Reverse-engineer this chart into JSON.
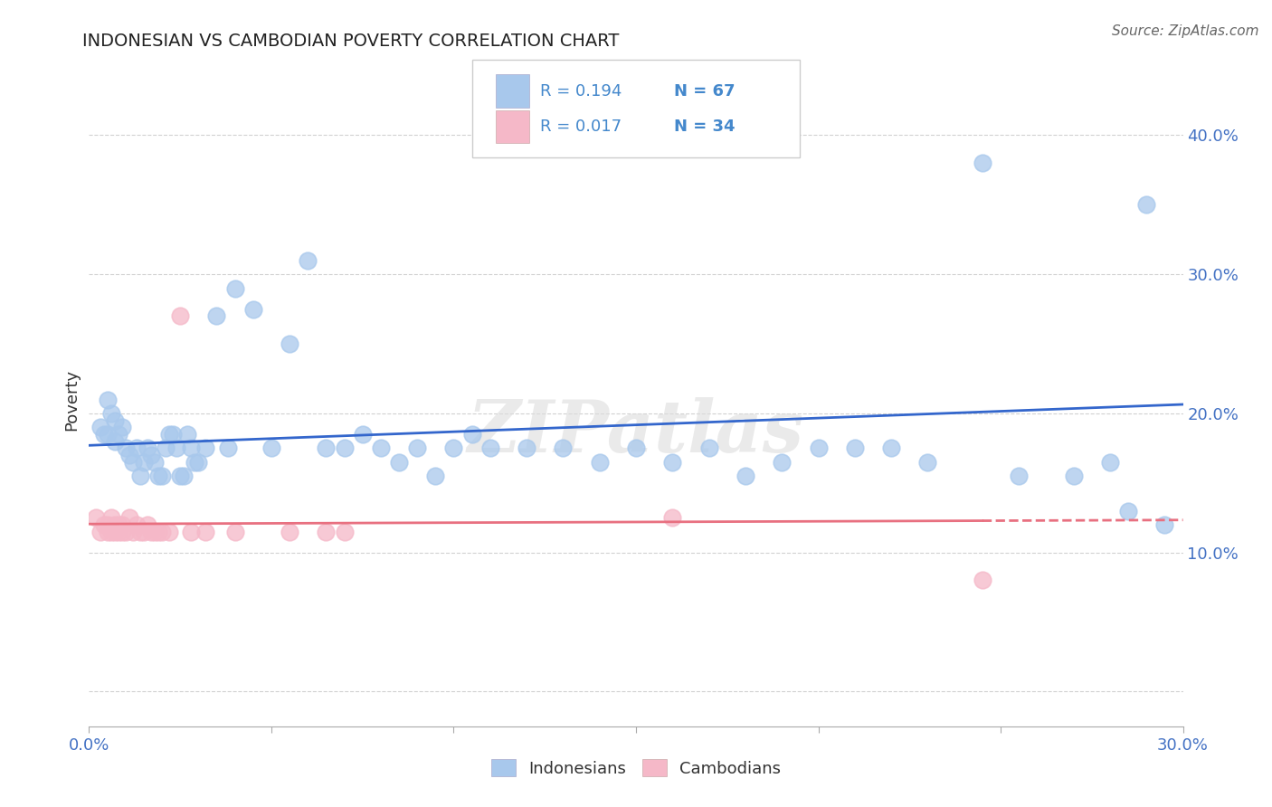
{
  "title": "INDONESIAN VS CAMBODIAN POVERTY CORRELATION CHART",
  "source": "Source: ZipAtlas.com",
  "ylabel": "Poverty",
  "x_min": 0.0,
  "x_max": 0.3,
  "y_min": -0.025,
  "y_max": 0.445,
  "indonesian_R": 0.194,
  "indonesian_N": 67,
  "cambodian_R": 0.017,
  "cambodian_N": 34,
  "indonesian_color": "#A8C8EC",
  "cambodian_color": "#F5B8C8",
  "indonesian_line_color": "#3366CC",
  "cambodian_line_color": "#E87080",
  "legend_color": "#4488CC",
  "indonesian_x": [
    0.003,
    0.004,
    0.005,
    0.005,
    0.006,
    0.007,
    0.007,
    0.008,
    0.009,
    0.01,
    0.011,
    0.012,
    0.013,
    0.014,
    0.015,
    0.016,
    0.017,
    0.018,
    0.019,
    0.02,
    0.021,
    0.022,
    0.023,
    0.024,
    0.025,
    0.026,
    0.027,
    0.028,
    0.029,
    0.03,
    0.032,
    0.035,
    0.038,
    0.04,
    0.045,
    0.05,
    0.055,
    0.06,
    0.065,
    0.07,
    0.075,
    0.08,
    0.085,
    0.09,
    0.095,
    0.1,
    0.105,
    0.11,
    0.12,
    0.13,
    0.14,
    0.15,
    0.16,
    0.17,
    0.18,
    0.19,
    0.2,
    0.21,
    0.22,
    0.23,
    0.245,
    0.255,
    0.27,
    0.28,
    0.285,
    0.29,
    0.295
  ],
  "indonesian_y": [
    0.19,
    0.185,
    0.21,
    0.185,
    0.2,
    0.18,
    0.195,
    0.185,
    0.19,
    0.175,
    0.17,
    0.165,
    0.175,
    0.155,
    0.165,
    0.175,
    0.17,
    0.165,
    0.155,
    0.155,
    0.175,
    0.185,
    0.185,
    0.175,
    0.155,
    0.155,
    0.185,
    0.175,
    0.165,
    0.165,
    0.175,
    0.27,
    0.175,
    0.29,
    0.275,
    0.175,
    0.25,
    0.31,
    0.175,
    0.175,
    0.185,
    0.175,
    0.165,
    0.175,
    0.155,
    0.175,
    0.185,
    0.175,
    0.175,
    0.175,
    0.165,
    0.175,
    0.165,
    0.175,
    0.155,
    0.165,
    0.175,
    0.175,
    0.175,
    0.165,
    0.38,
    0.155,
    0.155,
    0.165,
    0.13,
    0.35,
    0.12
  ],
  "cambodian_x": [
    0.002,
    0.003,
    0.004,
    0.005,
    0.005,
    0.006,
    0.006,
    0.007,
    0.007,
    0.008,
    0.008,
    0.009,
    0.009,
    0.01,
    0.011,
    0.012,
    0.013,
    0.014,
    0.015,
    0.016,
    0.017,
    0.018,
    0.019,
    0.02,
    0.022,
    0.025,
    0.028,
    0.032,
    0.04,
    0.055,
    0.065,
    0.07,
    0.16,
    0.245
  ],
  "cambodian_y": [
    0.125,
    0.115,
    0.12,
    0.115,
    0.12,
    0.115,
    0.125,
    0.12,
    0.115,
    0.12,
    0.115,
    0.12,
    0.115,
    0.115,
    0.125,
    0.115,
    0.12,
    0.115,
    0.115,
    0.12,
    0.115,
    0.115,
    0.115,
    0.115,
    0.115,
    0.27,
    0.115,
    0.115,
    0.115,
    0.115,
    0.115,
    0.115,
    0.125,
    0.08
  ]
}
